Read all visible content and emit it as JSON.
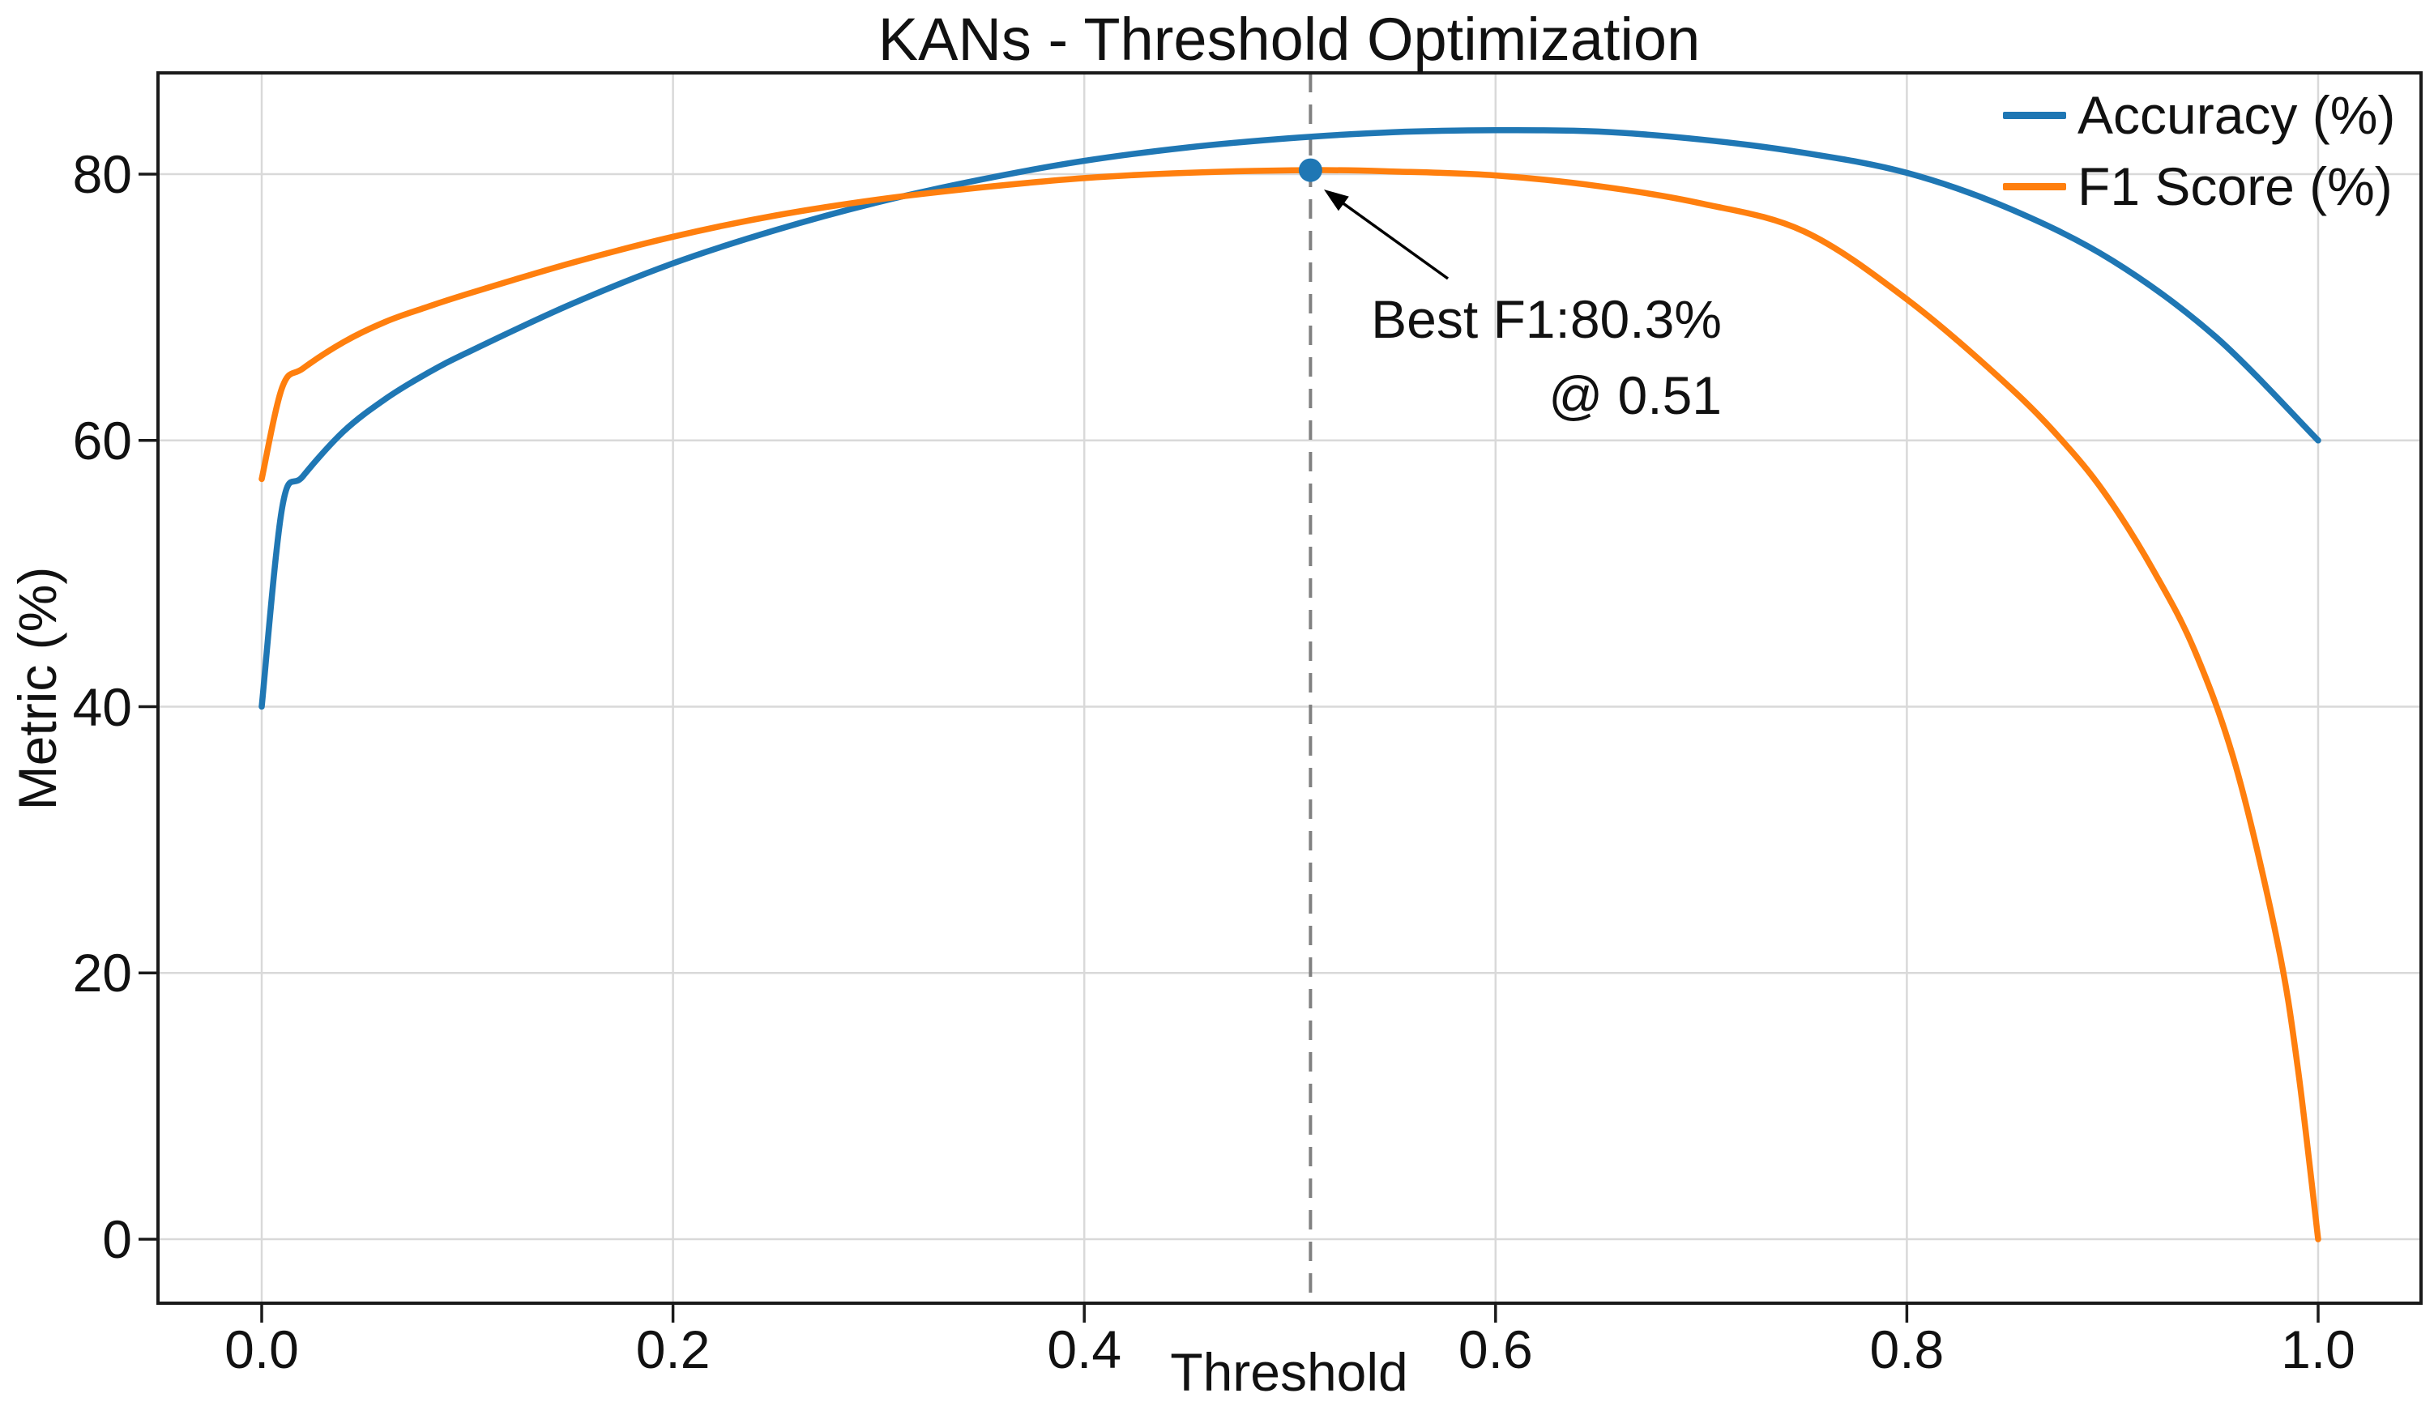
{
  "title": "KANs - Threshold Optimization",
  "axes": {
    "xlabel": "Threshold",
    "ylabel": "Metric (%)",
    "x_tick_labels": [
      "0.0",
      "0.2",
      "0.4",
      "0.6",
      "0.8",
      "1.0"
    ],
    "y_tick_labels": [
      "0",
      "20",
      "40",
      "60",
      "80"
    ]
  },
  "legend": {
    "items": [
      {
        "label": "Accuracy (%)",
        "color": "#1f77b4"
      },
      {
        "label": "F1 Score (%)",
        "color": "#ff7f0e"
      }
    ]
  },
  "annotation": {
    "line1": "Best F1:80.3%",
    "line2": "@ 0.51"
  },
  "colors": {
    "accuracy": "#1f77b4",
    "f1": "#ff7f0e",
    "grid": "#d9d9d9",
    "spine": "#1a1a1a",
    "dashed_line": "#808080",
    "marker": "#1f77b4",
    "arrow": "#000000",
    "text": "#111111"
  },
  "chart_data": {
    "type": "line",
    "title": "KANs - Threshold Optimization",
    "xlabel": "Threshold",
    "ylabel": "Metric (%)",
    "xlim": [
      -0.05,
      1.05
    ],
    "ylim": [
      -4.8,
      87.6
    ],
    "x_ticks": [
      0.0,
      0.2,
      0.4,
      0.6,
      0.8,
      1.0
    ],
    "y_ticks": [
      0,
      20,
      40,
      60,
      80
    ],
    "grid": true,
    "legend_position": "upper right",
    "series": [
      {
        "name": "Accuracy (%)",
        "color": "#1f77b4",
        "x": [
          0.0,
          0.01,
          0.02,
          0.04,
          0.06,
          0.08,
          0.1,
          0.15,
          0.2,
          0.25,
          0.3,
          0.35,
          0.4,
          0.45,
          0.5,
          0.55,
          0.6,
          0.65,
          0.7,
          0.75,
          0.8,
          0.85,
          0.9,
          0.95,
          1.0
        ],
        "y": [
          40.0,
          55.0,
          57.3,
          60.7,
          63.1,
          65.0,
          66.6,
          70.2,
          73.3,
          75.8,
          77.9,
          79.6,
          81.0,
          82.0,
          82.7,
          83.15,
          83.3,
          83.2,
          82.6,
          81.6,
          80.1,
          77.4,
          73.5,
          67.8,
          60.0
        ]
      },
      {
        "name": "F1 Score (%)",
        "color": "#ff7f0e",
        "x": [
          0.0,
          0.01,
          0.02,
          0.04,
          0.06,
          0.08,
          0.1,
          0.15,
          0.2,
          0.25,
          0.3,
          0.35,
          0.4,
          0.45,
          0.51,
          0.55,
          0.6,
          0.65,
          0.7,
          0.75,
          0.8,
          0.85,
          0.88,
          0.9,
          0.92,
          0.94,
          0.96,
          0.98,
          0.99,
          1.0
        ],
        "y": [
          57.1,
          64.0,
          65.4,
          67.4,
          68.9,
          70.0,
          71.0,
          73.3,
          75.3,
          76.9,
          78.1,
          79.0,
          79.7,
          80.1,
          80.3,
          80.2,
          79.9,
          79.1,
          77.8,
          75.7,
          70.6,
          64.0,
          59.2,
          55.2,
          50.2,
          44.2,
          35.5,
          22.5,
          13.0,
          0.0
        ]
      }
    ],
    "best_point": {
      "x": 0.51,
      "y": 80.3,
      "series": "F1 Score (%)"
    },
    "vline": {
      "x": 0.51,
      "style": "dashed",
      "color": "#808080"
    },
    "annotation_text": "Best F1:80.3% @ 0.51"
  }
}
